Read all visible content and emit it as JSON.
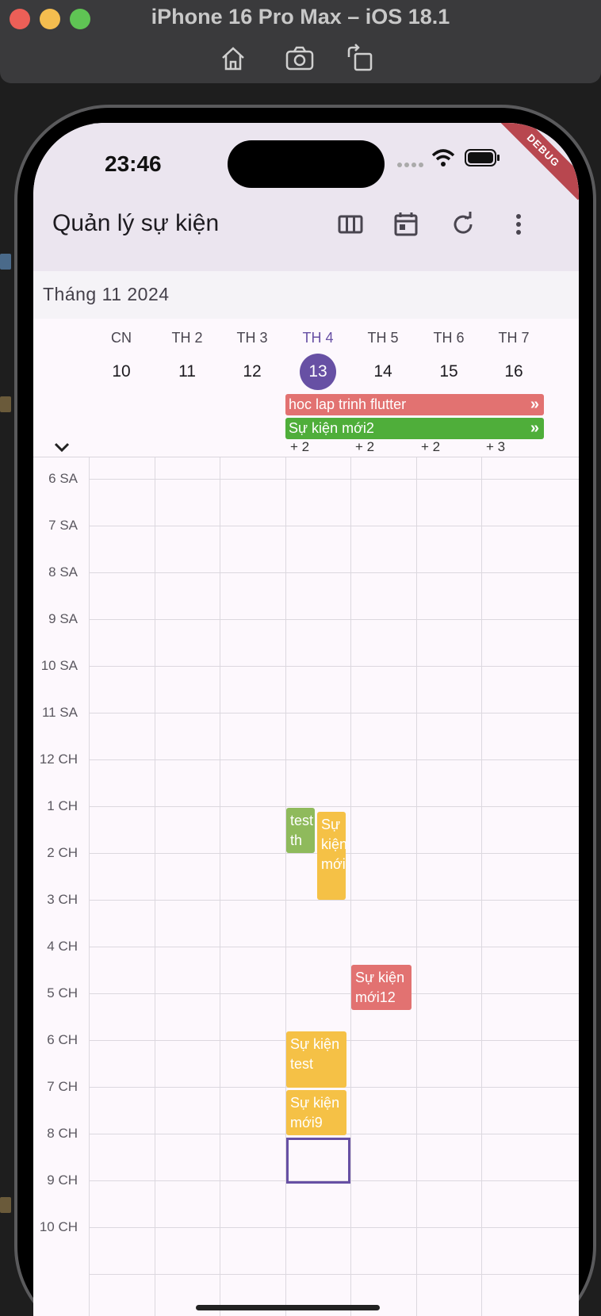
{
  "simulator": {
    "title": "iPhone 16 Pro Max – iOS 18.1",
    "buttons": [
      "home-icon",
      "screenshot-icon",
      "rotate-icon"
    ]
  },
  "status": {
    "time": "23:46",
    "debug": "DEBUG"
  },
  "appbar": {
    "title": "Quản lý sự kiện",
    "actions": [
      "week-view-icon",
      "calendar-icon",
      "refresh-icon",
      "more-vert-icon"
    ]
  },
  "calendar": {
    "month": "Tháng 11 2024",
    "days": [
      {
        "dow": "CN",
        "num": "10"
      },
      {
        "dow": "TH 2",
        "num": "11"
      },
      {
        "dow": "TH 3",
        "num": "12"
      },
      {
        "dow": "TH 4",
        "num": "13",
        "today": true
      },
      {
        "dow": "TH 5",
        "num": "14"
      },
      {
        "dow": "TH 6",
        "num": "15"
      },
      {
        "dow": "TH 7",
        "num": "16"
      }
    ],
    "allday_events": [
      {
        "title": "hoc lap trinh flutter",
        "color": "#e27271"
      },
      {
        "title": "Sự kiện mới2",
        "color": "#4fae3a"
      }
    ],
    "more_counts": [
      "+ 2",
      "+ 2",
      "+ 2",
      "+ 3"
    ],
    "hours": [
      "6 SA",
      "7 SA",
      "8 SA",
      "9 SA",
      "10 SA",
      "11 SA",
      "12 CH",
      "1 CH",
      "2 CH",
      "3 CH",
      "4 CH",
      "5 CH",
      "6 CH",
      "7 CH",
      "8 CH",
      "9 CH",
      "10 CH"
    ],
    "events": [
      {
        "title": "test th",
        "color": "#8fba5c"
      },
      {
        "title": "Sự kiện mới",
        "color": "#f5c146"
      },
      {
        "title": "Sự kiện mới12",
        "color": "#e27271"
      },
      {
        "title": "Sự kiện test",
        "color": "#f5c146"
      },
      {
        "title": "Sự kiện mới9",
        "color": "#f5c146"
      }
    ]
  }
}
